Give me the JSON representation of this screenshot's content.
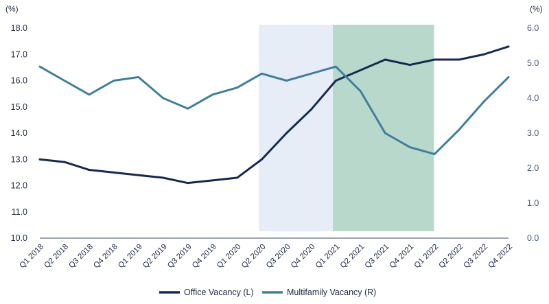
{
  "chart_data": {
    "type": "line",
    "title": "",
    "left_unit": "(%)",
    "right_unit": "(%)",
    "categories": [
      "Q1 2018",
      "Q2 2018",
      "Q3 2018",
      "Q4 2018",
      "Q1 2019",
      "Q2 2019",
      "Q3 2019",
      "Q4 2019",
      "Q1 2020",
      "Q2 2020",
      "Q3 2020",
      "Q4 2020",
      "Q1 2021",
      "Q2 2021",
      "Q3 2021",
      "Q4 2021",
      "Q1 2022",
      "Q2 2022",
      "Q3 2022",
      "Q4 2022"
    ],
    "y_left": {
      "min": 10.0,
      "max": 18.0,
      "ticks": [
        "10.0",
        "11.0",
        "12.0",
        "13.0",
        "14.0",
        "15.0",
        "16.0",
        "17.0",
        "18.0"
      ]
    },
    "y_right": {
      "min": 0.0,
      "max": 6.0,
      "ticks": [
        "0.0",
        "1.0",
        "2.0",
        "3.0",
        "4.0",
        "5.0",
        "6.0"
      ]
    },
    "series": [
      {
        "name": "Office Vacancy (L)",
        "axis": "left",
        "color": "#16284f",
        "values": [
          13.0,
          12.9,
          12.6,
          12.5,
          12.4,
          12.3,
          12.1,
          12.2,
          12.3,
          13.0,
          14.0,
          14.9,
          16.0,
          16.4,
          16.8,
          16.6,
          16.8,
          16.8,
          17.0,
          17.3
        ]
      },
      {
        "name": "Multifamily Vacancy (R)",
        "axis": "right",
        "color": "#3f7f9b",
        "values": [
          4.9,
          4.5,
          4.1,
          4.5,
          4.6,
          4.0,
          3.7,
          4.1,
          4.3,
          4.7,
          4.5,
          4.7,
          4.9,
          4.2,
          3.0,
          2.6,
          2.4,
          3.1,
          3.9,
          4.6
        ]
      }
    ],
    "shaded_regions": [
      {
        "from": "Q2 2020",
        "to": "Q1 2021",
        "color": "#e6edf7"
      },
      {
        "from": "Q1 2021",
        "to": "Q1 2022",
        "color": "#b9d8cc"
      }
    ],
    "legend_position": "bottom-center"
  }
}
